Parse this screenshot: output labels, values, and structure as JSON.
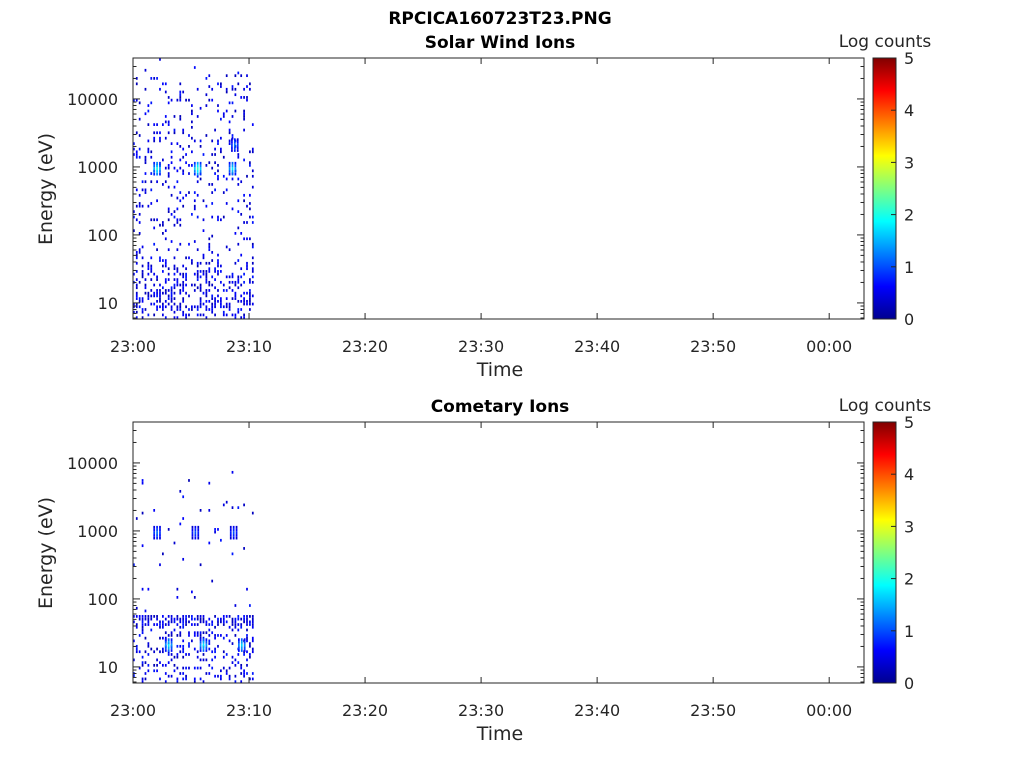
{
  "figure": {
    "filename_title": "RPCICA160723T23.PNG"
  },
  "colorbar": {
    "label": "Log counts",
    "ticks": [
      "0",
      "1",
      "2",
      "3",
      "4",
      "5"
    ],
    "colormap": "jet",
    "range": [
      0,
      5
    ]
  },
  "chart_data": [
    {
      "type": "heatmap",
      "title": "Solar Wind Ions",
      "xlabel": "Time",
      "ylabel": "Energy (eV)",
      "y_scale": "log",
      "ylim": [
        5.8,
        40000
      ],
      "xlim": [
        "23:00",
        "00:03"
      ],
      "x_ticks": [
        "23:00",
        "23:10",
        "23:20",
        "23:30",
        "23:40",
        "23:50",
        "00:00"
      ],
      "y_ticks": [
        "10",
        "100",
        "1000",
        "10000"
      ],
      "data_time_range": [
        "23:00",
        "23:10.5"
      ],
      "features": [
        {
          "time": "23:02",
          "energy_eV": 900,
          "log_counts": 2.0
        },
        {
          "time": "23:05.5",
          "energy_eV": 900,
          "log_counts": 2.2
        },
        {
          "time": "23:08.5",
          "energy_eV": 900,
          "log_counts": 1.8
        },
        {
          "time": "23:08.7",
          "energy_eV": 2000,
          "log_counts": 1.2
        }
      ],
      "background": "sparse log_counts 0-0.8 scattered between 10 and 20000 eV, denser below 50 eV"
    },
    {
      "type": "heatmap",
      "title": "Cometary Ions",
      "xlabel": "Time",
      "ylabel": "Energy (eV)",
      "y_scale": "log",
      "ylim": [
        5.8,
        40000
      ],
      "xlim": [
        "23:00",
        "00:03"
      ],
      "x_ticks": [
        "23:00",
        "23:10",
        "23:20",
        "23:30",
        "23:40",
        "23:50",
        "00:00"
      ],
      "y_ticks": [
        "10",
        "100",
        "1000",
        "10000"
      ],
      "data_time_range": [
        "23:00",
        "23:10.5"
      ],
      "features": [
        {
          "time": "23:03",
          "energy_eV": 20,
          "log_counts": 1.8
        },
        {
          "time": "23:06",
          "energy_eV": 20,
          "log_counts": 1.8
        },
        {
          "time": "23:09.3",
          "energy_eV": 20,
          "log_counts": 1.7
        },
        {
          "time": "23:02",
          "energy_eV": 900,
          "log_counts": 1.2
        },
        {
          "time": "23:05.3",
          "energy_eV": 900,
          "log_counts": 1.0
        },
        {
          "time": "23:08.6",
          "energy_eV": 900,
          "log_counts": 1.0
        }
      ],
      "background": "band near 45 eV log_counts ~0.5, sparse points up to 6000 eV"
    }
  ]
}
